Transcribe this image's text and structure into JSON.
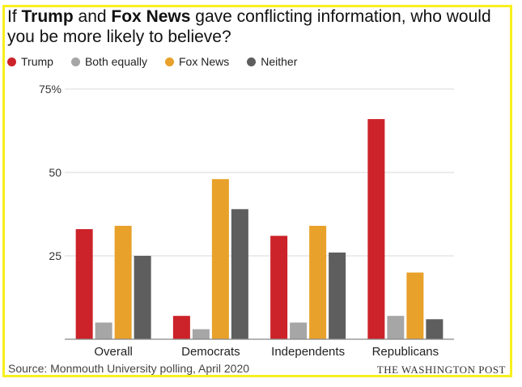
{
  "title": {
    "prefix": "If ",
    "entity_a": "Trump",
    "middle": " and ",
    "entity_b": "Fox News",
    "suffix": " gave conflicting information, who would you be more likely to believe?"
  },
  "chart_data": {
    "type": "bar",
    "title": "If Trump and Fox News gave conflicting information, who would you be more likely to believe?",
    "categories": [
      "Overall",
      "Democrats",
      "Independents",
      "Republicans"
    ],
    "series": [
      {
        "name": "Trump",
        "color": "#cc2229",
        "values": [
          33,
          7,
          31,
          66
        ]
      },
      {
        "name": "Both equally",
        "color": "#a6a6a6",
        "values": [
          5,
          3,
          5,
          7
        ]
      },
      {
        "name": "Fox News",
        "color": "#e8a12a",
        "values": [
          34,
          48,
          34,
          20
        ]
      },
      {
        "name": "Neither",
        "color": "#5e5e5e",
        "values": [
          25,
          39,
          26,
          6
        ]
      }
    ],
    "ylim": [
      0,
      75
    ],
    "yticks": [
      25,
      50,
      75
    ],
    "ytick_labels": [
      "25",
      "50",
      "75%"
    ],
    "grid": true,
    "legend": "top-left",
    "xlabel": "",
    "ylabel": ""
  },
  "footer": {
    "source": "Source: Monmouth University polling, April 2020",
    "brand": "THE WASHINGTON POST"
  },
  "colors": {
    "frame": "#f7f01c",
    "grid": "#d9d9d9",
    "baseline": "#888888"
  }
}
